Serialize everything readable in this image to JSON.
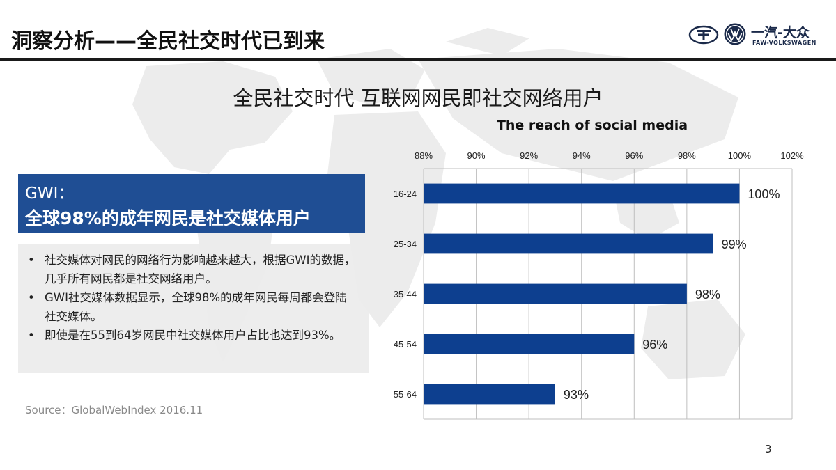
{
  "header": {
    "title": "洞察分析——全民社交时代已到来",
    "logo_cn": "一汽-大众",
    "logo_en": "FAW-VOLKSWAGEN"
  },
  "subtitle": "全民社交时代 互联网网民即社交网络用户",
  "gwi": {
    "line1": "GWI：",
    "line2": "全球98%的成年网民是社交媒体用户"
  },
  "bullets": [
    "社交媒体对网民的网络行为影响越来越大，根据GWI的数据，几乎所有网民都是社交网络用户。",
    "GWI社交媒体数据显示，全球98%的成年网民每周都会登陆社交媒体。",
    "即使是在55到64岁网民中社交媒体用户占比也达到93%。"
  ],
  "bullet_marker": "•",
  "source": "Source：GlobalWebIndex 2016.11",
  "page_number": "3",
  "colors": {
    "accent": "#1f4e94",
    "bar": "#0d3f8f",
    "grid": "#bfbfbf"
  },
  "chart_data": {
    "type": "bar",
    "orientation": "horizontal",
    "title": "The reach of social media",
    "categories": [
      "16-24",
      "25-34",
      "35-44",
      "45-54",
      "55-64"
    ],
    "values": [
      100,
      99,
      98,
      96,
      93
    ],
    "value_labels": [
      "100%",
      "99%",
      "98%",
      "96%",
      "93%"
    ],
    "xlim": [
      88,
      102
    ],
    "x_ticks": [
      "88%",
      "90%",
      "92%",
      "94%",
      "96%",
      "98%",
      "100%",
      "102%"
    ],
    "x_tick_values": [
      88,
      90,
      92,
      94,
      96,
      98,
      100,
      102
    ],
    "x_axis_position": "top",
    "grid": true,
    "legend": false
  }
}
